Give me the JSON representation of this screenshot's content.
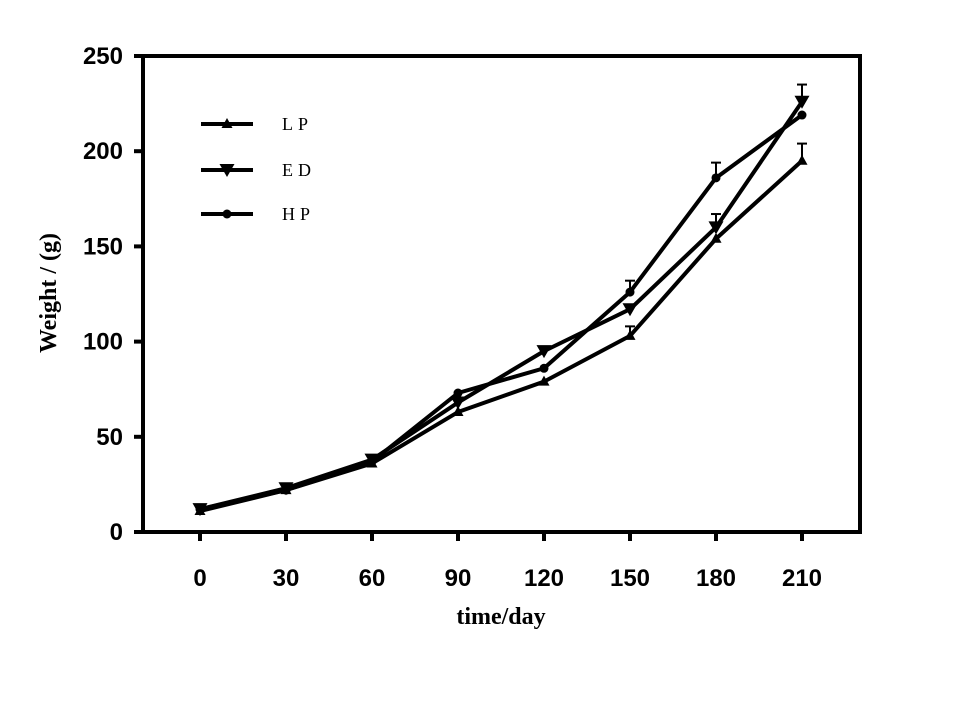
{
  "chart_data": {
    "type": "line",
    "xlabel": "time/day",
    "ylabel": "Weight / (g)",
    "x": [
      0,
      30,
      60,
      90,
      120,
      150,
      180,
      210
    ],
    "x_tick_labels": [
      "0",
      "30",
      "60",
      "90",
      "120",
      "150",
      "180",
      "210"
    ],
    "y_tick_labels": [
      "0",
      "50",
      "100",
      "150",
      "200",
      "250"
    ],
    "xlim": [
      -20,
      230
    ],
    "ylim": [
      0,
      250
    ],
    "y_ticks": [
      0,
      50,
      100,
      150,
      200,
      250
    ],
    "legend_position": "top-left",
    "series": [
      {
        "name": "LP",
        "marker": "triangle-up",
        "values": [
          11,
          22,
          36,
          63,
          79,
          103,
          154,
          195
        ],
        "errors": [
          0,
          0,
          0,
          0,
          0,
          5,
          0,
          9
        ]
      },
      {
        "name": "ED",
        "marker": "triangle-down",
        "values": [
          12,
          23,
          38,
          68,
          95,
          117,
          160,
          226
        ],
        "errors": [
          0,
          0,
          0,
          0,
          0,
          0,
          7,
          9
        ]
      },
      {
        "name": "HP",
        "marker": "circle",
        "values": [
          12,
          22,
          37,
          73,
          86,
          126,
          186,
          219
        ],
        "errors": [
          0,
          0,
          0,
          0,
          0,
          6,
          8,
          0
        ]
      }
    ],
    "colors": {
      "line": "#000000",
      "background": "#ffffff"
    }
  }
}
